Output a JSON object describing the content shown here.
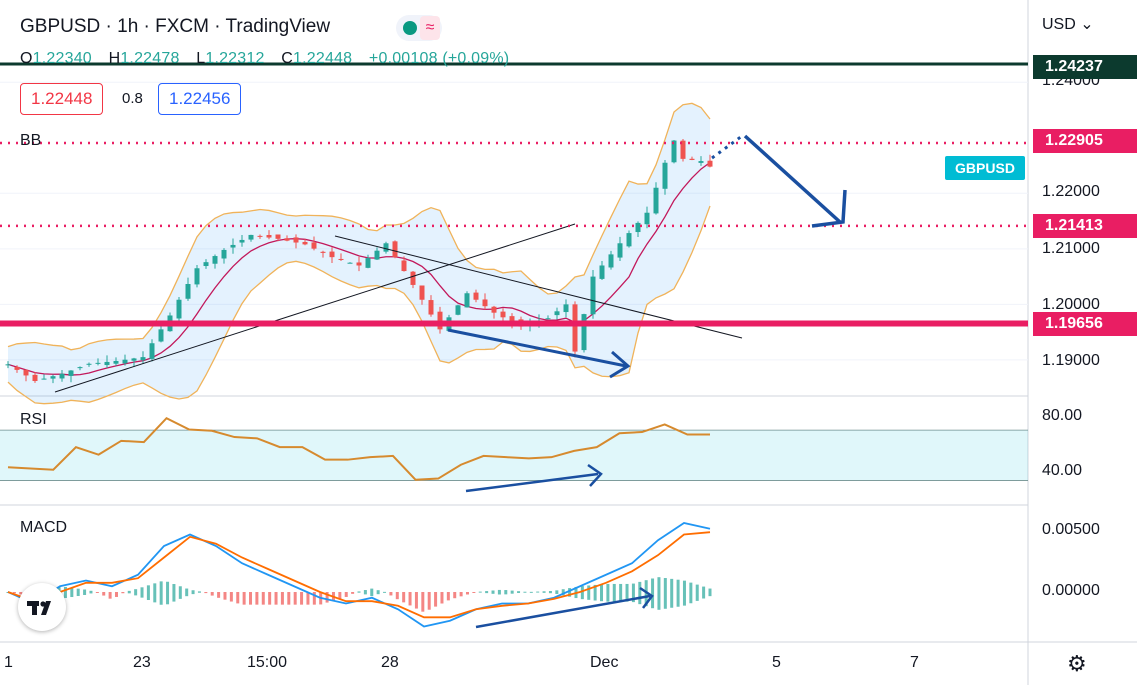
{
  "header": {
    "title": "GBPUSD · 1h · FXCM · TradingView",
    "ohlc": {
      "open_label": "O",
      "open": "1.22340",
      "high_label": "H",
      "high": "1.22478",
      "low_label": "L",
      "low": "1.22312",
      "close_label": "C",
      "close": "1.22448",
      "change": "+0.00108 (+0.09%)"
    },
    "sell_price": "1.22448",
    "spread": "0.8",
    "buy_price": "1.22456"
  },
  "currency_selector": "USD",
  "symbol_tag": "GBPUSD",
  "price_tags": [
    {
      "label": "1.24237",
      "value": 1.24237,
      "color": "#0c3a2e"
    },
    {
      "label": "1.22905",
      "value": 1.22905,
      "color": "#e91e63"
    },
    {
      "label": "1.21413",
      "value": 1.21413,
      "color": "#e91e63"
    },
    {
      "label": "1.19656",
      "value": 1.19656,
      "color": "#e91e63"
    }
  ],
  "panels": {
    "price_title": "BB",
    "rsi_title": "RSI",
    "macd_title": "MACD"
  },
  "colors": {
    "up": "#26a69a",
    "down": "#ef5350",
    "bb_band": "#f0b35a",
    "bb_basis": "#c2185b",
    "level": "#e91e63",
    "arrow": "#1a4fa0",
    "rsi": "#d68a2e",
    "macd": "#2196f3",
    "signal": "#ff6d00"
  },
  "chart_data": [
    {
      "type": "candlestick",
      "title": "GBPUSD · 1h · FXCM",
      "y_ticks": [
        "1.24000",
        "1.22000",
        "1.21000",
        "1.20000",
        "1.19000"
      ],
      "ylim": [
        1.1835,
        1.244
      ],
      "x_ticks": [
        "1",
        "23",
        "15:00",
        "28",
        "Dec",
        "5",
        "7"
      ],
      "horizontal_levels": [
        1.22905,
        1.21413,
        1.19656
      ],
      "close_path": [
        {
          "x": 0,
          "y": 1.1892
        },
        {
          "x": 3,
          "y": 1.1862
        },
        {
          "x": 6,
          "y": 1.1875
        },
        {
          "x": 9,
          "y": 1.1893
        },
        {
          "x": 12,
          "y": 1.1898
        },
        {
          "x": 15,
          "y": 1.1905
        },
        {
          "x": 18,
          "y": 1.198
        },
        {
          "x": 21,
          "y": 1.2065
        },
        {
          "x": 24,
          "y": 1.2098
        },
        {
          "x": 27,
          "y": 1.2125
        },
        {
          "x": 30,
          "y": 1.2118
        },
        {
          "x": 33,
          "y": 1.2108
        },
        {
          "x": 36,
          "y": 1.2085
        },
        {
          "x": 39,
          "y": 1.207
        },
        {
          "x": 42,
          "y": 1.211
        },
        {
          "x": 45,
          "y": 1.2035
        },
        {
          "x": 48,
          "y": 1.1955
        },
        {
          "x": 51,
          "y": 1.202
        },
        {
          "x": 54,
          "y": 1.1985
        },
        {
          "x": 57,
          "y": 1.196
        },
        {
          "x": 60,
          "y": 1.1975
        },
        {
          "x": 62,
          "y": 1.2
        },
        {
          "x": 63,
          "y": 1.1915
        },
        {
          "x": 65,
          "y": 1.205
        },
        {
          "x": 68,
          "y": 1.211
        },
        {
          "x": 71,
          "y": 1.2165
        },
        {
          "x": 73,
          "y": 1.2255
        },
        {
          "x": 74,
          "y": 1.2295
        },
        {
          "x": 75,
          "y": 1.2262
        },
        {
          "x": 77,
          "y": 1.2258
        },
        {
          "x": 78,
          "y": 1.2248
        }
      ],
      "annotations": [
        {
          "type": "forecast_arrow",
          "from": 1.22905,
          "to": 1.21413
        },
        {
          "type": "divergence_arrow",
          "from": 1.1955,
          "to": 1.1895
        }
      ]
    },
    {
      "type": "line",
      "title": "RSI",
      "y_ticks": [
        "80.00",
        "40.00"
      ],
      "band": [
        30,
        70
      ],
      "series": [
        {
          "values": [
            42,
            38,
            40,
            55,
            52,
            60,
            62,
            78,
            72,
            68,
            66,
            62,
            58,
            55,
            48,
            45,
            50,
            48,
            32,
            30,
            44,
            48,
            50,
            46,
            50,
            52,
            58,
            66,
            70,
            73,
            68,
            65
          ]
        }
      ]
    },
    {
      "type": "line",
      "title": "MACD",
      "y_ticks": [
        "0.00500",
        "0.00000"
      ],
      "series": [
        {
          "values": [
            0.0,
            -0.001,
            0.0005,
            0.001,
            0.0005,
            0.0015,
            0.004,
            0.005,
            0.004,
            0.0025,
            0.0015,
            0.0005,
            -0.0005,
            -0.001,
            -0.0005,
            -0.0015,
            -0.003,
            -0.0025,
            -0.0015,
            -0.001,
            -0.001,
            -0.0005,
            0.0005,
            0.0015,
            0.0025,
            0.0045,
            0.006,
            0.0055
          ]
        },
        {
          "values": [
            0.0,
            -0.0008,
            0.0,
            0.0008,
            0.0008,
            0.0012,
            0.003,
            0.0048,
            0.0042,
            0.003,
            0.002,
            0.001,
            0.0,
            -0.0008,
            -0.0008,
            -0.0012,
            -0.0022,
            -0.0022,
            -0.0015,
            -0.0012,
            -0.001,
            -0.0006,
            0.0,
            0.0008,
            0.0018,
            0.0032,
            0.005,
            0.0052
          ]
        }
      ]
    }
  ]
}
